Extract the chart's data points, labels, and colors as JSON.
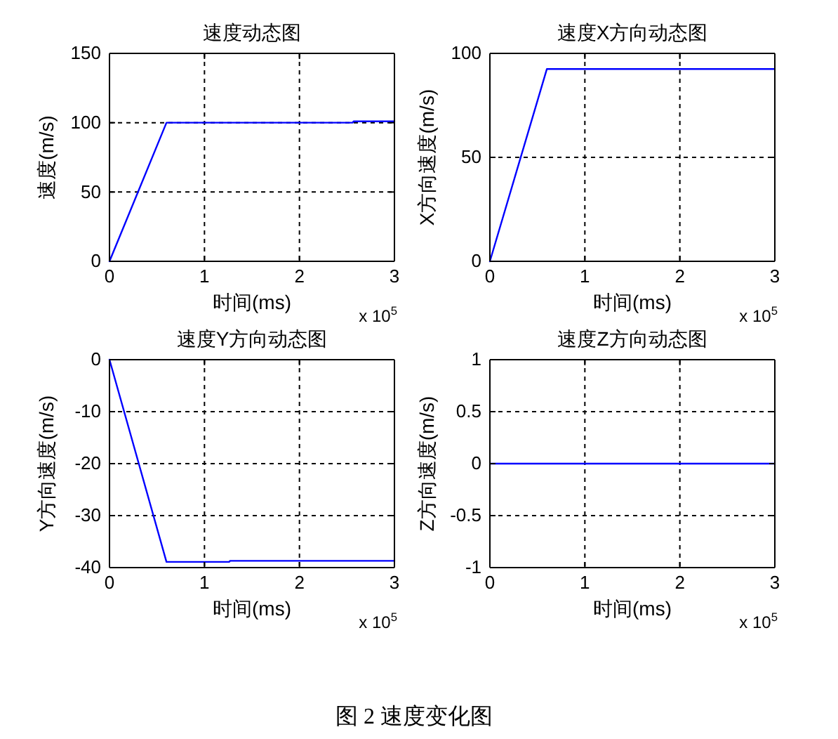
{
  "chart_data": [
    {
      "type": "line",
      "title": "速度动态图",
      "xlabel": "时间(ms)",
      "ylabel": "速度(m/s)",
      "annotations": [
        "x 10$^{5}$"
      ],
      "series": [
        {
          "color": "#0000ff",
          "x": [
            0,
            0.6,
            2.56,
            2.57,
            3
          ],
          "values": [
            0,
            100,
            100,
            101,
            101
          ]
        }
      ],
      "xlim": [
        0,
        3
      ],
      "ylim": [
        0,
        150
      ],
      "xticks": [
        0,
        1,
        2,
        3
      ],
      "yticks": [
        0,
        50,
        100,
        150
      ],
      "grid": true
    },
    {
      "type": "line",
      "title": "速度X方向动态图",
      "xlabel": "时间(ms)",
      "ylabel": "X方向速度(m/s)",
      "annotations": [
        "x 10$^{5}$"
      ],
      "series": [
        {
          "color": "#0000ff",
          "x": [
            0,
            0.6,
            3
          ],
          "values": [
            0,
            92.5,
            92.5
          ]
        }
      ],
      "xlim": [
        0,
        3
      ],
      "ylim": [
        0,
        100
      ],
      "xticks": [
        0,
        1,
        2,
        3
      ],
      "yticks": [
        0,
        50,
        100
      ],
      "grid": true
    },
    {
      "type": "line",
      "title": "速度Y方向动态图",
      "xlabel": "时间(ms)",
      "ylabel": "Y方向速度(m/s)",
      "annotations": [
        "x 10$^{5}$"
      ],
      "series": [
        {
          "color": "#0000ff",
          "x": [
            0,
            0.6,
            1.26,
            1.27,
            3
          ],
          "values": [
            0,
            -38.9,
            -38.9,
            -38.7,
            -38.7
          ]
        }
      ],
      "xlim": [
        0,
        3
      ],
      "ylim": [
        -40,
        0
      ],
      "xticks": [
        0,
        1,
        2,
        3
      ],
      "yticks": [
        -40,
        -30,
        -20,
        -10,
        0
      ],
      "grid": true
    },
    {
      "type": "line",
      "title": "速度Z方向动态图",
      "xlabel": "时间(ms)",
      "ylabel": "Z方向速度(m/s)",
      "annotations": [
        "x 10$^{5}$",
        "图 2 速度变化图"
      ],
      "series": [
        {
          "color": "#0000ff",
          "x": [
            0,
            3
          ],
          "values": [
            0,
            0
          ]
        }
      ],
      "xlim": [
        0,
        3
      ],
      "ylim": [
        -1,
        1
      ],
      "xticks": [
        0,
        1,
        2,
        3
      ],
      "yticks": [
        -1,
        -0.5,
        0,
        0.5,
        1
      ],
      "grid": true
    }
  ]
}
